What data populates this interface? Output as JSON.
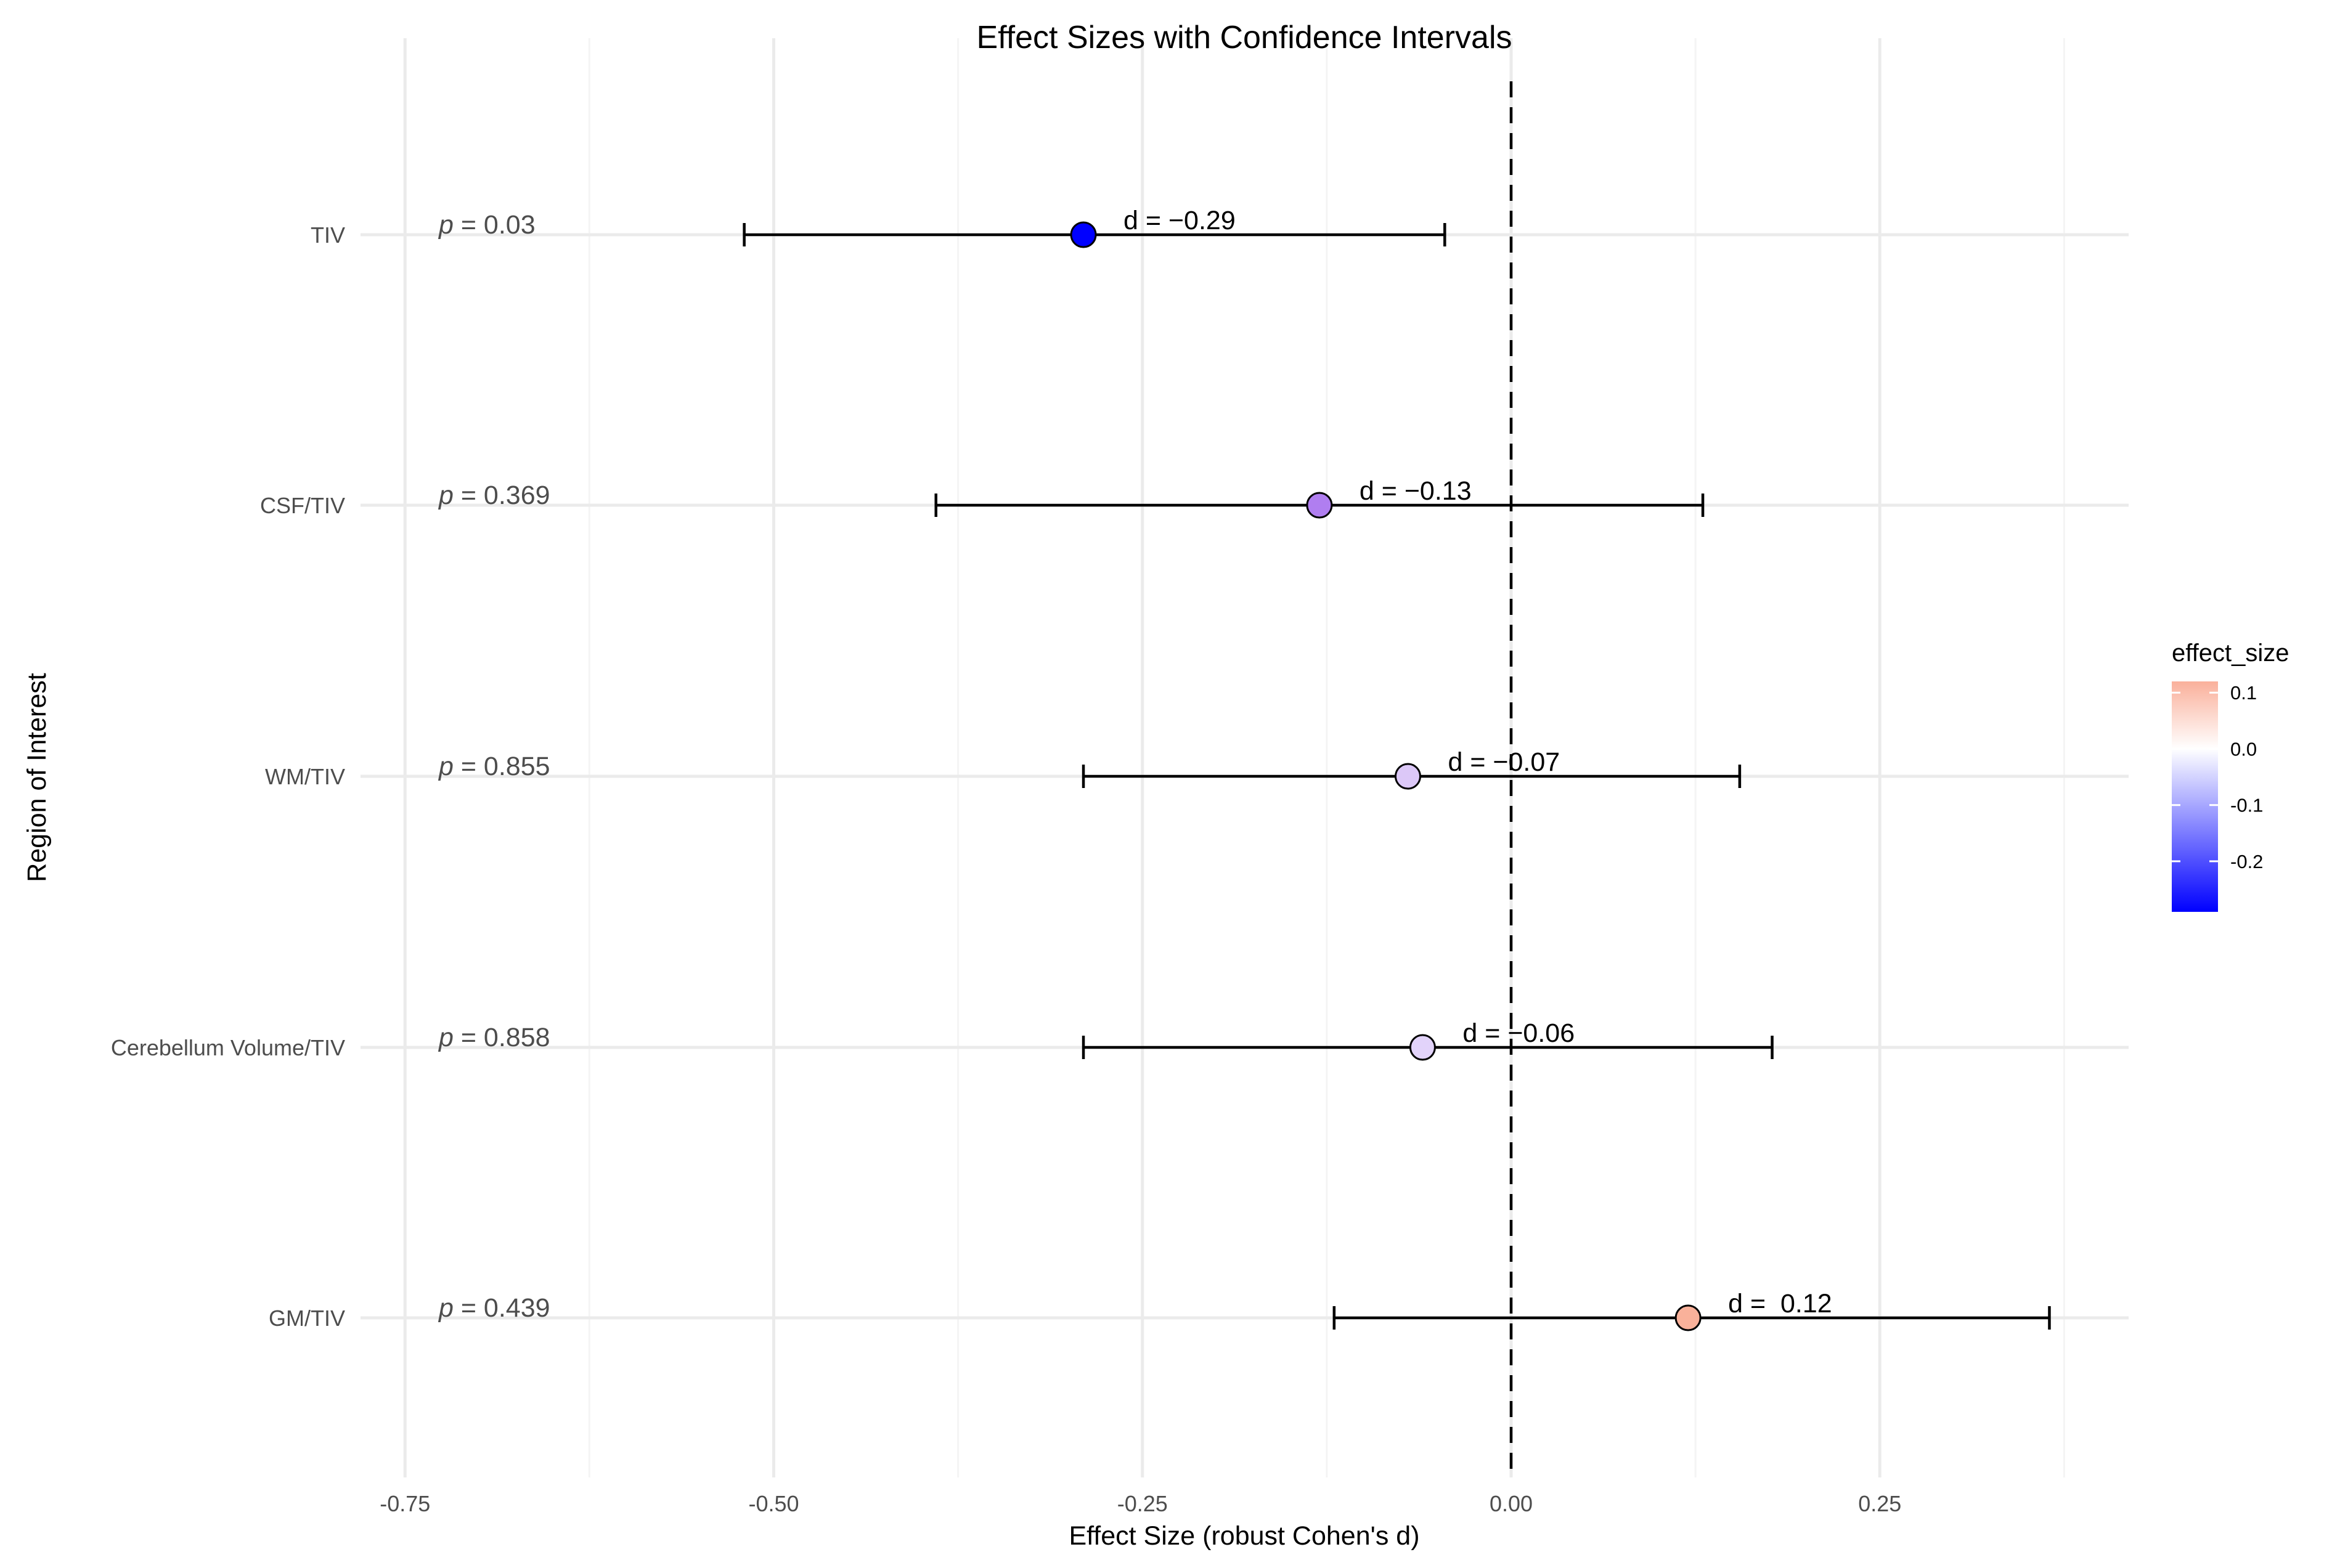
{
  "chart_data": {
    "type": "forest",
    "title": "Effect Sizes with Confidence Intervals",
    "xlabel": "Effect Size (robust Cohen's d)",
    "ylabel": "Region of Interest",
    "xlim": [
      -0.755,
      0.42
    ],
    "x_ticks": [
      -0.75,
      -0.5,
      -0.25,
      0.0,
      0.25
    ],
    "x_tick_labels": [
      "-0.75",
      "-0.50",
      "-0.25",
      "0.00",
      "0.25"
    ],
    "reference_line": 0,
    "rows": [
      {
        "region": "TIV",
        "effect_size": -0.29,
        "ci_low": -0.52,
        "ci_high": -0.045,
        "d_label": "d = −0.29",
        "p_prefix": "p",
        "p_value": " = 0.03",
        "color": "#0000ff"
      },
      {
        "region": "CSF/TIV",
        "effect_size": -0.13,
        "ci_low": -0.39,
        "ci_high": 0.13,
        "d_label": "d = −0.13",
        "p_prefix": "p",
        "p_value": " = 0.369",
        "color": "#b07ef0"
      },
      {
        "region": "WM/TIV",
        "effect_size": -0.07,
        "ci_low": -0.29,
        "ci_high": 0.155,
        "d_label": "d = −0.07",
        "p_prefix": "p",
        "p_value": " = 0.855",
        "color": "#dcc8f8"
      },
      {
        "region": "Cerebellum Volume/TIV",
        "effect_size": -0.06,
        "ci_low": -0.29,
        "ci_high": 0.177,
        "d_label": "d = −0.06",
        "p_prefix": "p",
        "p_value": " = 0.858",
        "color": "#e2d3fa"
      },
      {
        "region": "GM/TIV",
        "effect_size": 0.12,
        "ci_low": -0.12,
        "ci_high": 0.365,
        "d_label": "d =  0.12",
        "p_prefix": "p",
        "p_value": " = 0.439",
        "color": "#f9b19a"
      }
    ],
    "legend": {
      "title": "effect_size",
      "position": "right",
      "range": [
        -0.29,
        0.12
      ],
      "low_color": "#0000ff",
      "mid_color": "#ffffff",
      "high_color": "#fab09b",
      "breaks": [
        0.1,
        0.0,
        -0.1,
        -0.2
      ],
      "break_labels": [
        "0.1",
        "0.0",
        "-0.1",
        "-0.2"
      ]
    }
  }
}
